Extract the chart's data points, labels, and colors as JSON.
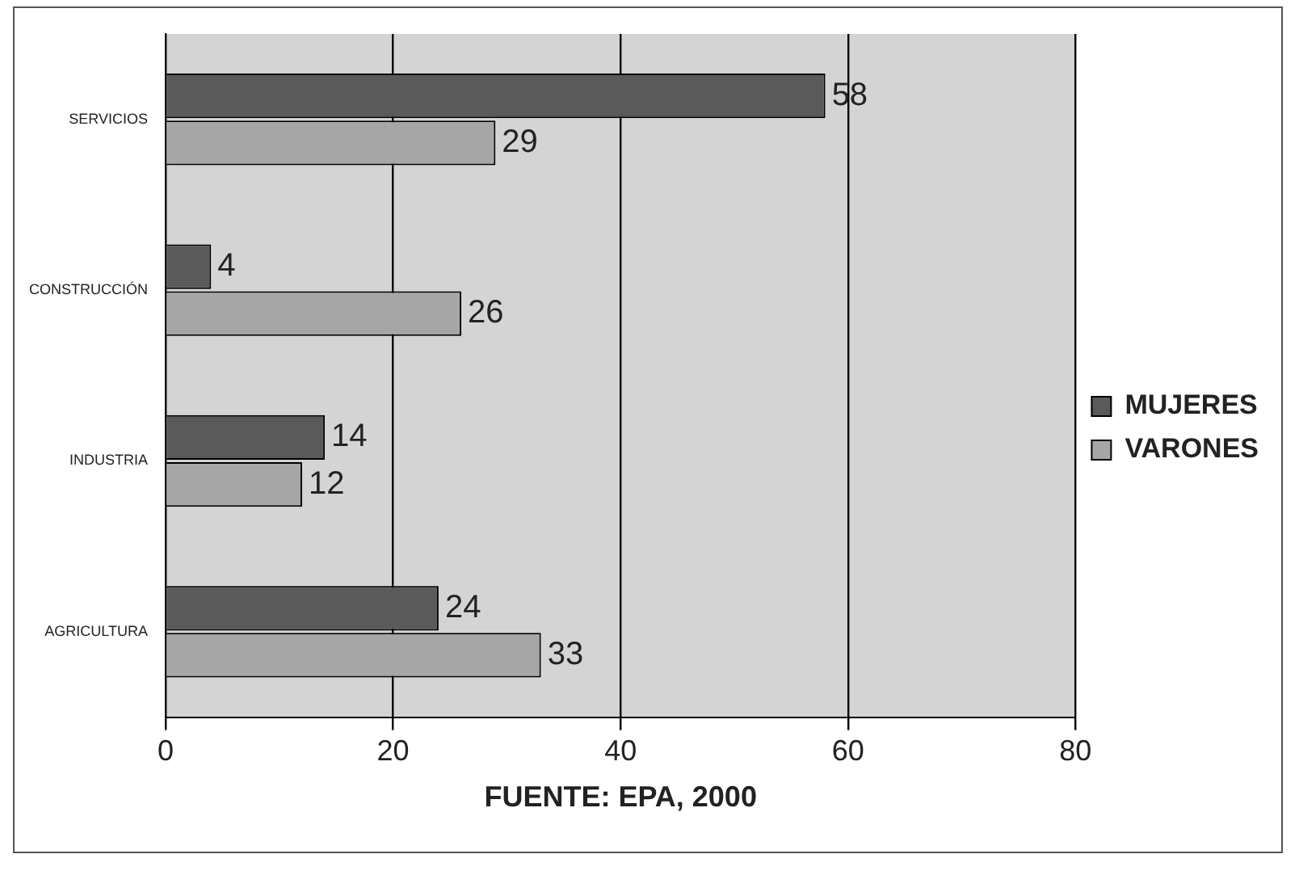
{
  "chart_data": {
    "type": "bar",
    "orientation": "horizontal",
    "xlabel": "FUENTE: EPA, 2000",
    "categories": [
      "SERVICIOS",
      "CONSTRUCCIÓN",
      "INDUSTRIA",
      "AGRICULTURA"
    ],
    "series": [
      {
        "name": "MUJERES",
        "color": "#5a5a5a",
        "values": [
          58,
          4,
          14,
          24
        ]
      },
      {
        "name": "VARONES",
        "color": "#a6a6a6",
        "values": [
          29,
          26,
          12,
          33
        ]
      }
    ],
    "xlim": [
      0,
      80
    ],
    "xticks": [
      0,
      20,
      40,
      60,
      80
    ],
    "grid": "x",
    "legend": "right",
    "data_labels": true
  }
}
